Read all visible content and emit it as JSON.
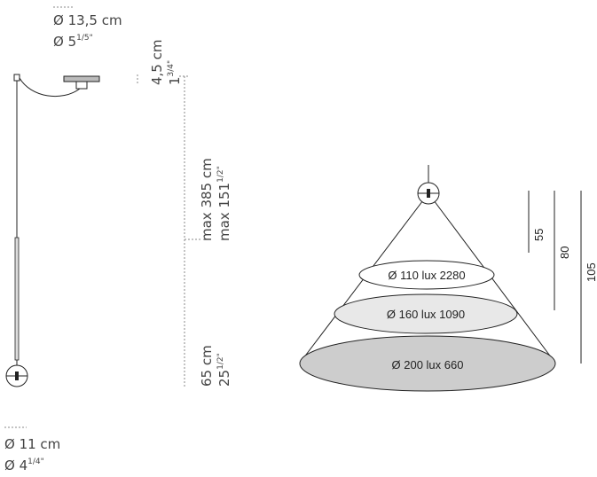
{
  "canopy": {
    "diameter_cm": "Ø 13,5 cm",
    "diameter_in": "Ø 5",
    "diameter_in_fraction": "1/5\"",
    "height_cm": "4,5 cm",
    "height_in": "1",
    "height_in_fraction": "3/4\""
  },
  "cable": {
    "length_cm": "max 385 cm",
    "length_in": "max 151",
    "length_in_fraction": "1/2\""
  },
  "lamp": {
    "length_cm": "65 cm",
    "length_in": "25",
    "length_in_fraction": "1/2\"",
    "diameter_cm": "Ø 11 cm",
    "diameter_in": "Ø 4",
    "diameter_in_fraction": "1/4\""
  },
  "light_cone": {
    "rings": [
      "Ø 110 lux 2280",
      "Ø 160 lux 1090",
      "Ø 200 lux 660"
    ],
    "distances": [
      "55",
      "80",
      "105"
    ]
  }
}
